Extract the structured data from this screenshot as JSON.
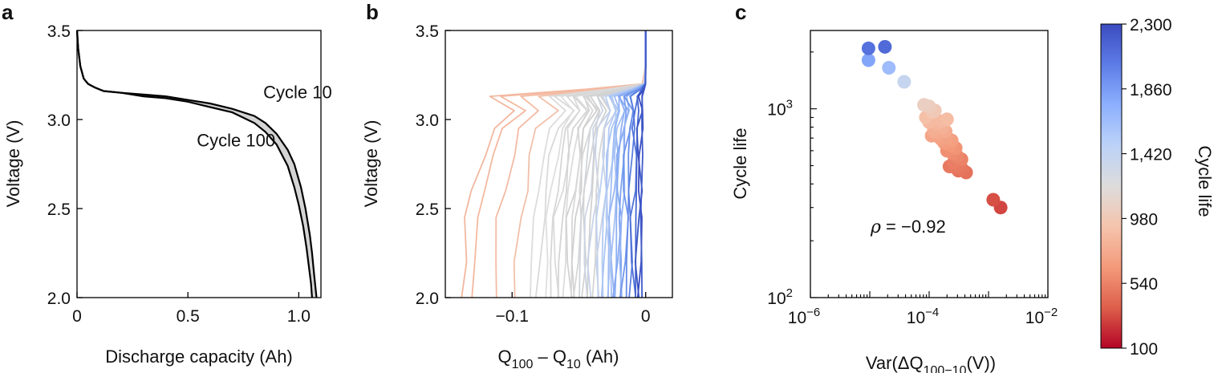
{
  "figure": {
    "panels": [
      {
        "letter": "a"
      },
      {
        "letter": "b"
      },
      {
        "letter": "c"
      }
    ]
  },
  "chart_data": [
    {
      "panel": "a",
      "type": "line",
      "xlabel": "Discharge capacity (Ah)",
      "ylabel": "Voltage (V)",
      "xlim": [
        0,
        1.1
      ],
      "ylim": [
        2.0,
        3.5
      ],
      "xticks": [
        0,
        0.5,
        1.0
      ],
      "xtick_labels": [
        "0",
        "0.5",
        "1.0"
      ],
      "yticks": [
        2.0,
        2.5,
        3.0,
        3.5
      ],
      "ytick_labels": [
        "2.0",
        "2.5",
        "3.0",
        "3.5"
      ],
      "series": [
        {
          "name": "Cycle 10",
          "x": [
            0,
            0.005,
            0.015,
            0.03,
            0.05,
            0.08,
            0.12,
            0.2,
            0.3,
            0.4,
            0.5,
            0.6,
            0.7,
            0.8,
            0.85,
            0.9,
            0.95,
            0.98,
            1.01,
            1.03,
            1.05,
            1.06,
            1.07,
            1.08
          ],
          "y": [
            3.5,
            3.4,
            3.3,
            3.23,
            3.2,
            3.18,
            3.16,
            3.15,
            3.14,
            3.13,
            3.11,
            3.09,
            3.06,
            3.02,
            2.98,
            2.92,
            2.83,
            2.75,
            2.62,
            2.5,
            2.35,
            2.25,
            2.12,
            2.0
          ]
        },
        {
          "name": "Cycle 100",
          "x": [
            0,
            0.005,
            0.015,
            0.03,
            0.05,
            0.08,
            0.12,
            0.2,
            0.3,
            0.4,
            0.5,
            0.6,
            0.7,
            0.8,
            0.85,
            0.9,
            0.95,
            0.98,
            1.0,
            1.02,
            1.035,
            1.045,
            1.055,
            1.06
          ],
          "y": [
            3.5,
            3.4,
            3.3,
            3.23,
            3.2,
            3.18,
            3.16,
            3.15,
            3.13,
            3.12,
            3.1,
            3.07,
            3.04,
            2.98,
            2.93,
            2.86,
            2.74,
            2.62,
            2.52,
            2.4,
            2.28,
            2.18,
            2.08,
            2.0
          ]
        }
      ],
      "annotations": [
        {
          "text": "Cycle 10",
          "x": 0.84,
          "y": 3.12
        },
        {
          "text": "Cycle 100",
          "x": 0.54,
          "y": 2.85
        }
      ],
      "fill_between": {
        "color": "#d4d4d4"
      }
    },
    {
      "panel": "b",
      "type": "line",
      "xlabel_main": "Q",
      "xlabel_sub1": "100",
      "xlabel_mid": " – Q",
      "xlabel_sub2": "10",
      "xlabel_tail": " (Ah)",
      "ylabel": "Voltage (V)",
      "xlim": [
        -0.15,
        0.02
      ],
      "ylim": [
        2.0,
        3.5
      ],
      "xticks": [
        -0.1,
        0
      ],
      "xtick_labels": [
        "−0.1",
        "0"
      ],
      "yticks": [
        2.0,
        2.5,
        3.0,
        3.5
      ],
      "ytick_labels": [
        "2.0",
        "2.5",
        "3.0",
        "3.5"
      ],
      "curve_shape": {
        "v": [
          3.5,
          3.3,
          3.2,
          3.17,
          3.13,
          3.05,
          2.95,
          2.8,
          2.6,
          2.45,
          2.2,
          2.0
        ],
        "f": [
          0,
          0,
          0.02,
          0.35,
          0.9,
          0.75,
          0.9,
          0.95,
          1.0,
          1.05,
          1.07,
          1.08
        ]
      },
      "series": [
        {
          "depth": -0.128,
          "color": "#f2b79f"
        },
        {
          "depth": -0.12,
          "color": "#f4b99f"
        },
        {
          "depth": -0.105,
          "color": "#f3bba3"
        },
        {
          "depth": -0.09,
          "color": "#f1c0aa"
        },
        {
          "depth": -0.08,
          "color": "#dcdcdc"
        },
        {
          "depth": -0.074,
          "color": "#d9d9d9"
        },
        {
          "depth": -0.07,
          "color": "#dedede"
        },
        {
          "depth": -0.066,
          "color": "#d6d6d6"
        },
        {
          "depth": -0.063,
          "color": "#dadada"
        },
        {
          "depth": -0.06,
          "color": "#d4d4d4"
        },
        {
          "depth": -0.057,
          "color": "#dcdcdc"
        },
        {
          "depth": -0.054,
          "color": "#d2d2d2"
        },
        {
          "depth": -0.052,
          "color": "#d8d8d8"
        },
        {
          "depth": -0.05,
          "color": "#d0d0d0"
        },
        {
          "depth": -0.048,
          "color": "#d6d6d6"
        },
        {
          "depth": -0.046,
          "color": "#cfd3db"
        },
        {
          "depth": -0.044,
          "color": "#d3d3d3"
        },
        {
          "depth": -0.042,
          "color": "#ccd4e3"
        },
        {
          "depth": -0.04,
          "color": "#d0d0d0"
        },
        {
          "depth": -0.038,
          "color": "#c8d3ea"
        },
        {
          "depth": -0.036,
          "color": "#d5d5d5"
        },
        {
          "depth": -0.034,
          "color": "#bcd0f0"
        },
        {
          "depth": -0.032,
          "color": "#c9d2e6"
        },
        {
          "depth": -0.03,
          "color": "#b3caf2"
        },
        {
          "depth": -0.029,
          "color": "#a9c4f4"
        },
        {
          "depth": -0.027,
          "color": "#b7ccf1"
        },
        {
          "depth": -0.026,
          "color": "#a0bdf5"
        },
        {
          "depth": -0.024,
          "color": "#97b6f4"
        },
        {
          "depth": -0.023,
          "color": "#a5c0f4"
        },
        {
          "depth": -0.021,
          "color": "#8eb0f3"
        },
        {
          "depth": -0.02,
          "color": "#86a9f1"
        },
        {
          "depth": -0.018,
          "color": "#7da2ef"
        },
        {
          "depth": -0.017,
          "color": "#93b4f4"
        },
        {
          "depth": -0.015,
          "color": "#6f95eb"
        },
        {
          "depth": -0.013,
          "color": "#678de8"
        },
        {
          "depth": -0.011,
          "color": "#5b80e2"
        },
        {
          "depth": -0.009,
          "color": "#5072d9"
        },
        {
          "depth": -0.007,
          "color": "#4565cf"
        },
        {
          "depth": -0.005,
          "color": "#3b56c4"
        },
        {
          "depth": -0.004,
          "color": "#3a4cc0"
        },
        {
          "depth": -0.003,
          "color": "#3f5ac9"
        }
      ]
    },
    {
      "panel": "c",
      "type": "scatter",
      "xlabel_main": "Var(ΔQ",
      "xlabel_sub": "100−10",
      "xlabel_tail": "(V))",
      "ylabel": "Cycle life",
      "xscale": "log",
      "yscale": "log",
      "xlim": [
        1e-06,
        0.01
      ],
      "ylim": [
        100,
        2600
      ],
      "xtick_base": [
        "10",
        "10",
        "10"
      ],
      "xtick_exp": [
        "−6",
        "−4",
        "−2"
      ],
      "ytick_base": [
        "10",
        "10"
      ],
      "ytick_exp": [
        "2",
        "3"
      ],
      "annotation": {
        "rho": "ρ",
        "rest": " = −0.92"
      },
      "x": [
        9.5e-06,
        1.8e-05,
        9.5e-06,
        2.1e-05,
        3.8e-05,
        8.2e-05,
        0.0001,
        0.000125,
        0.000115,
        0.00016,
        0.0002,
        8.8e-05,
        0.0001,
        0.000135,
        0.00012,
        0.00017,
        0.00012,
        0.00015,
        0.00019,
        0.00011,
        0.000145,
        0.00016,
        0.000205,
        0.00024,
        0.00018,
        0.00023,
        0.00028,
        0.0002,
        0.00025,
        0.0003,
        0.00035,
        0.00026,
        0.00032,
        0.00022,
        0.00027,
        0.00036,
        0.00031,
        0.00042,
        0.0012,
        0.0016
      ],
      "y": [
        2090,
        2130,
        1810,
        1650,
        1390,
        1050,
        1030,
        980,
        960,
        860,
        880,
        900,
        850,
        830,
        780,
        800,
        760,
        750,
        760,
        720,
        710,
        690,
        700,
        680,
        660,
        640,
        620,
        600,
        580,
        560,
        540,
        520,
        500,
        495,
        490,
        480,
        470,
        460,
        330,
        300
      ],
      "colorbar": {
        "label": "Cycle life",
        "min": 100,
        "max": 2300,
        "ticks": [
          2300,
          1860,
          1420,
          980,
          540,
          100
        ],
        "tick_labels": [
          "2,300",
          "1,860",
          "1,420",
          "980",
          "540",
          "100"
        ],
        "colormap": [
          "#b40426",
          "#dd5f4b",
          "#f49a7b",
          "#f5c4ac",
          "#dddcdc",
          "#bcd2f7",
          "#8db0fe",
          "#5d7ce6",
          "#3b4cc0"
        ]
      }
    }
  ]
}
